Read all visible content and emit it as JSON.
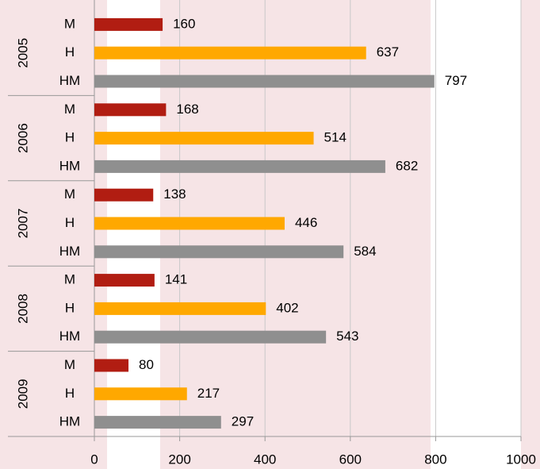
{
  "chart_data": {
    "type": "bar",
    "orientation": "horizontal",
    "categories": [
      "2005",
      "2006",
      "2007",
      "2008",
      "2009"
    ],
    "series": [
      {
        "name": "M",
        "color": "#b11d12",
        "values": [
          160,
          168,
          138,
          141,
          80
        ]
      },
      {
        "name": "H",
        "color": "#ffa800",
        "values": [
          637,
          514,
          446,
          402,
          217
        ]
      },
      {
        "name": "HM",
        "color": "#8f8f8f",
        "values": [
          797,
          682,
          584,
          543,
          297
        ]
      }
    ],
    "xlim": [
      0,
      1000
    ],
    "xticks": [
      0,
      200,
      400,
      600,
      800,
      1000
    ],
    "grid": true
  }
}
